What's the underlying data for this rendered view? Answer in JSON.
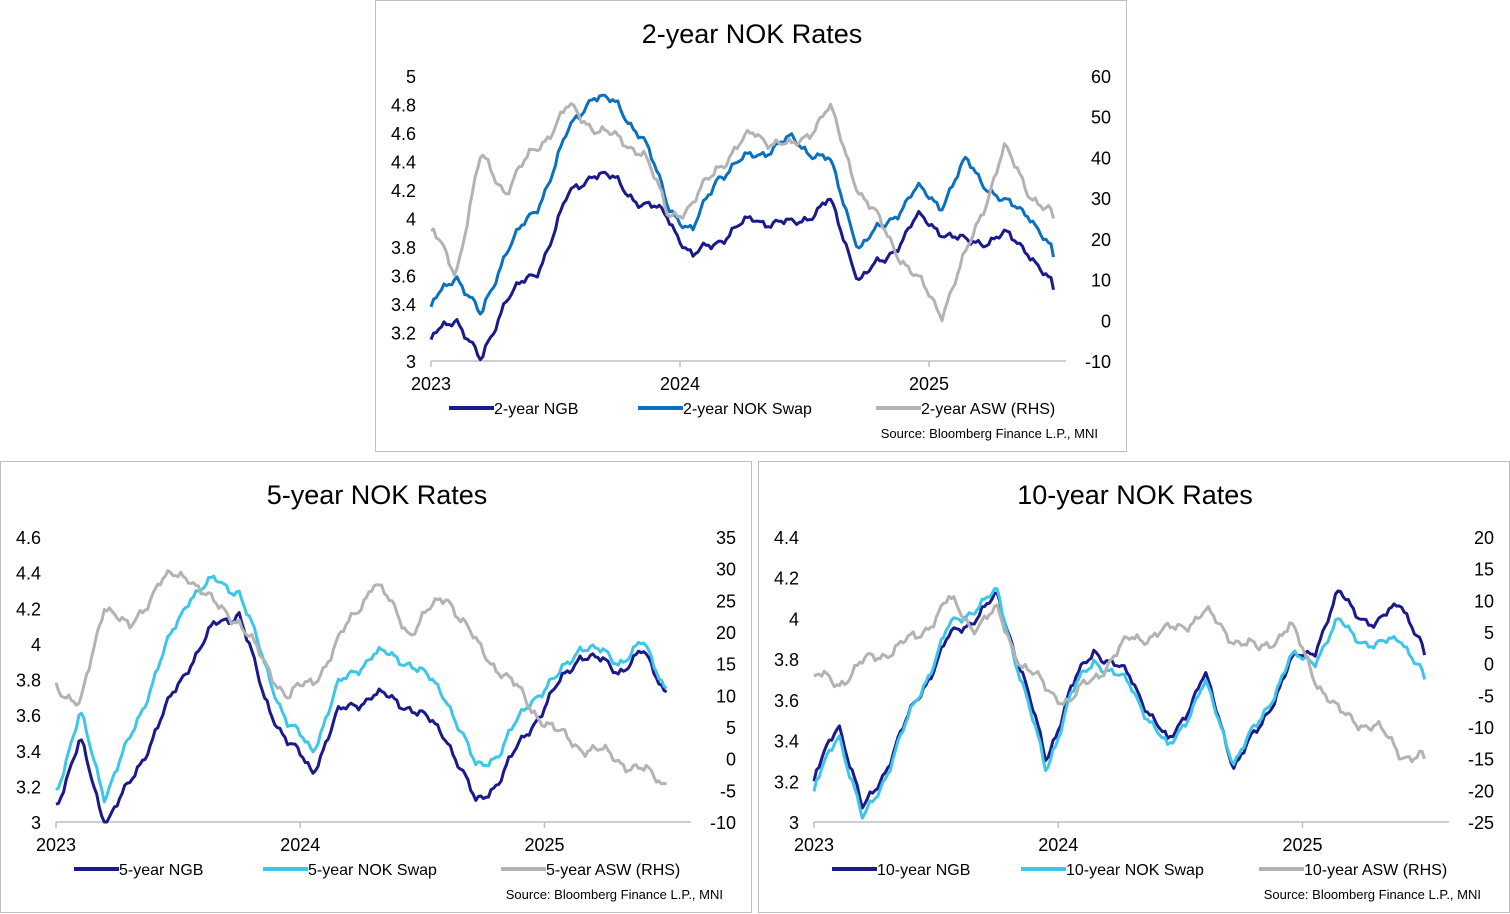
{
  "colors": {
    "ngb": "#1a1a8c",
    "swap2y": "#0a70c0",
    "swap_light": "#3ec6e8",
    "asw": "#b3b3b3",
    "axis": "#bfbfbf"
  },
  "chart_data": [
    {
      "type": "line",
      "title": "2-year NOK Rates",
      "source": "Source: Bloomberg Finance L.P., MNI",
      "x_ticks": [
        "2023",
        "2024",
        "2025"
      ],
      "x_range": [
        2023.0,
        2025.55
      ],
      "y_left": {
        "range": [
          3,
          5
        ],
        "ticks": [
          "3",
          "3.2",
          "3.4",
          "3.6",
          "3.8",
          "4",
          "4.2",
          "4.4",
          "4.6",
          "4.8",
          "5"
        ]
      },
      "y_right": {
        "range": [
          -10,
          60
        ],
        "ticks": [
          "-10",
          "0",
          "10",
          "20",
          "30",
          "40",
          "50",
          "60"
        ]
      },
      "x": [
        2023.0,
        2023.1,
        2023.2,
        2023.3,
        2023.42,
        2023.55,
        2023.65,
        2023.75,
        2023.85,
        2023.95,
        2024.05,
        2024.15,
        2024.3,
        2024.45,
        2024.6,
        2024.72,
        2024.82,
        2024.95,
        2025.05,
        2025.15,
        2025.3,
        2025.4,
        2025.5
      ],
      "series": [
        {
          "name": "2-year NGB",
          "axis": "left",
          "color": "ngb",
          "width": 3,
          "values": [
            3.15,
            3.32,
            2.98,
            3.45,
            3.6,
            4.15,
            4.33,
            4.25,
            4.1,
            4.02,
            3.72,
            3.85,
            4.0,
            3.95,
            4.12,
            3.58,
            3.7,
            4.0,
            3.92,
            3.82,
            3.88,
            3.78,
            3.5
          ]
        },
        {
          "name": "2-year NOK Swap",
          "axis": "left",
          "color": "swap2y",
          "width": 3,
          "values": [
            3.38,
            3.62,
            3.3,
            3.78,
            4.05,
            4.6,
            4.88,
            4.78,
            4.58,
            4.1,
            3.9,
            4.3,
            4.45,
            4.55,
            4.4,
            3.8,
            3.95,
            4.2,
            4.1,
            4.4,
            4.1,
            4.05,
            3.73
          ]
        },
        {
          "name": "2-year ASW (RHS)",
          "axis": "right",
          "color": "asw",
          "width": 3,
          "values": [
            22,
            12,
            40,
            32,
            42,
            52,
            48,
            44,
            42,
            26,
            28,
            38,
            46,
            42,
            52,
            32,
            22,
            10,
            2,
            16,
            42,
            32,
            25
          ]
        }
      ]
    },
    {
      "type": "line",
      "title": "5-year NOK Rates",
      "source": "Source: Bloomberg Finance L.P., MNI",
      "x_ticks": [
        "2023",
        "2024",
        "2025"
      ],
      "x_range": [
        2023.0,
        2025.6
      ],
      "y_left": {
        "range": [
          3,
          4.6
        ],
        "ticks": [
          "3",
          "3.2",
          "3.4",
          "3.6",
          "3.8",
          "4",
          "4.2",
          "4.4",
          "4.6"
        ]
      },
      "y_right": {
        "range": [
          -10,
          35
        ],
        "ticks": [
          "-10",
          "-5",
          "0",
          "5",
          "10",
          "15",
          "20",
          "25",
          "30",
          "35"
        ]
      },
      "x": [
        2023.0,
        2023.1,
        2023.2,
        2023.3,
        2023.42,
        2023.55,
        2023.65,
        2023.75,
        2023.85,
        2023.95,
        2024.05,
        2024.15,
        2024.3,
        2024.45,
        2024.6,
        2024.72,
        2024.82,
        2024.95,
        2025.05,
        2025.15,
        2025.3,
        2025.4,
        2025.5
      ],
      "series": [
        {
          "name": "5-year NGB",
          "axis": "left",
          "color": "ngb",
          "width": 3,
          "values": [
            3.1,
            3.45,
            3.0,
            3.2,
            3.55,
            3.9,
            4.1,
            4.18,
            3.7,
            3.45,
            3.28,
            3.6,
            3.72,
            3.65,
            3.48,
            3.1,
            3.25,
            3.55,
            3.75,
            3.95,
            3.85,
            3.95,
            3.73
          ]
        },
        {
          "name": "5-year NOK Swap",
          "axis": "left",
          "color": "swap_light",
          "width": 3,
          "values": [
            3.18,
            3.6,
            3.15,
            3.45,
            3.88,
            4.28,
            4.35,
            4.3,
            3.9,
            3.55,
            3.4,
            3.75,
            3.95,
            3.9,
            3.7,
            3.3,
            3.4,
            3.7,
            3.8,
            4.0,
            3.9,
            4.0,
            3.75
          ]
        },
        {
          "name": "5-year ASW (RHS)",
          "axis": "right",
          "color": "asw",
          "width": 3,
          "values": [
            12,
            8,
            25,
            20,
            28,
            29,
            24,
            22,
            15,
            10,
            12,
            18,
            28,
            20,
            26,
            18,
            14,
            8,
            4,
            2,
            0,
            -2,
            -4
          ]
        }
      ]
    },
    {
      "type": "line",
      "title": "10-year NOK Rates",
      "source": "Source: Bloomberg Finance L.P., MNI",
      "x_ticks": [
        "2023",
        "2024",
        "2025"
      ],
      "x_range": [
        2023.0,
        2025.6
      ],
      "y_left": {
        "range": [
          3,
          4.4
        ],
        "ticks": [
          "3",
          "3.2",
          "3.4",
          "3.6",
          "3.8",
          "4",
          "4.2",
          "4.4"
        ]
      },
      "y_right": {
        "range": [
          -25,
          20
        ],
        "ticks": [
          "-25",
          "-20",
          "-15",
          "-10",
          "-5",
          "0",
          "5",
          "10",
          "15",
          "20"
        ]
      },
      "x": [
        2023.0,
        2023.1,
        2023.2,
        2023.3,
        2023.42,
        2023.55,
        2023.65,
        2023.75,
        2023.85,
        2023.95,
        2024.05,
        2024.15,
        2024.3,
        2024.45,
        2024.6,
        2024.72,
        2024.82,
        2024.95,
        2025.05,
        2025.15,
        2025.3,
        2025.4,
        2025.5
      ],
      "series": [
        {
          "name": "10-year NGB",
          "axis": "left",
          "color": "ngb",
          "width": 3,
          "values": [
            3.2,
            3.5,
            3.05,
            3.28,
            3.6,
            3.9,
            4.0,
            4.1,
            3.75,
            3.3,
            3.65,
            3.85,
            3.7,
            3.38,
            3.72,
            3.28,
            3.45,
            3.78,
            3.85,
            4.12,
            3.95,
            4.1,
            3.82
          ]
        },
        {
          "name": "10-year NOK Swap",
          "axis": "left",
          "color": "swap_light",
          "width": 3,
          "values": [
            3.15,
            3.45,
            3.0,
            3.25,
            3.6,
            3.95,
            4.05,
            4.12,
            3.7,
            3.25,
            3.62,
            3.8,
            3.66,
            3.35,
            3.68,
            3.3,
            3.48,
            3.8,
            3.8,
            3.98,
            3.85,
            3.92,
            3.7
          ]
        },
        {
          "name": "10-year ASW (RHS)",
          "axis": "right",
          "color": "asw",
          "width": 3,
          "values": [
            -2,
            -3,
            0,
            2,
            4,
            10,
            6,
            8,
            0,
            -4,
            -6,
            -2,
            4,
            5,
            8,
            4,
            2,
            6,
            -2,
            -8,
            -10,
            -14,
            -15
          ]
        }
      ]
    }
  ]
}
